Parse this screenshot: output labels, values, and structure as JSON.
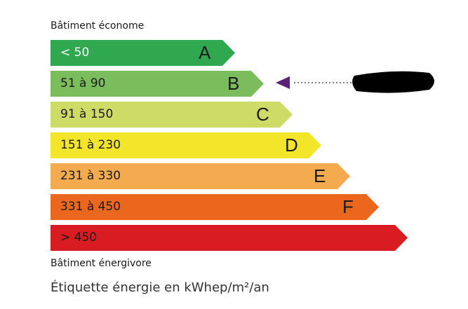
{
  "top_label": "Bâtiment économe",
  "bottom_label": "Bâtiment énergivore",
  "footer": "Étiquette énergie en kWhep/m²/an",
  "classes": [
    {
      "letter": "A",
      "range": "< 50",
      "color": "#2fa84f",
      "text_color": "#ffffff"
    },
    {
      "letter": "B",
      "range": "51 à 90",
      "color": "#7bbd5c",
      "text_color": "#1a1a1a"
    },
    {
      "letter": "C",
      "range": "91 à 150",
      "color": "#cddc67",
      "text_color": "#1a1a1a"
    },
    {
      "letter": "D",
      "range": "151 à 230",
      "color": "#f2e52a",
      "text_color": "#1a1a1a"
    },
    {
      "letter": "E",
      "range": "231 à 330",
      "color": "#f4ab4f",
      "text_color": "#1a1a1a"
    },
    {
      "letter": "F",
      "range": "331 à 450",
      "color": "#ec671e",
      "text_color": "#1a1a1a"
    },
    {
      "letter": "",
      "range": "> 450",
      "color": "#d81c22",
      "text_color": "#1a1a1a"
    }
  ],
  "indicator": {
    "class": "B",
    "color": "#5b2177",
    "value_redacted": true
  }
}
